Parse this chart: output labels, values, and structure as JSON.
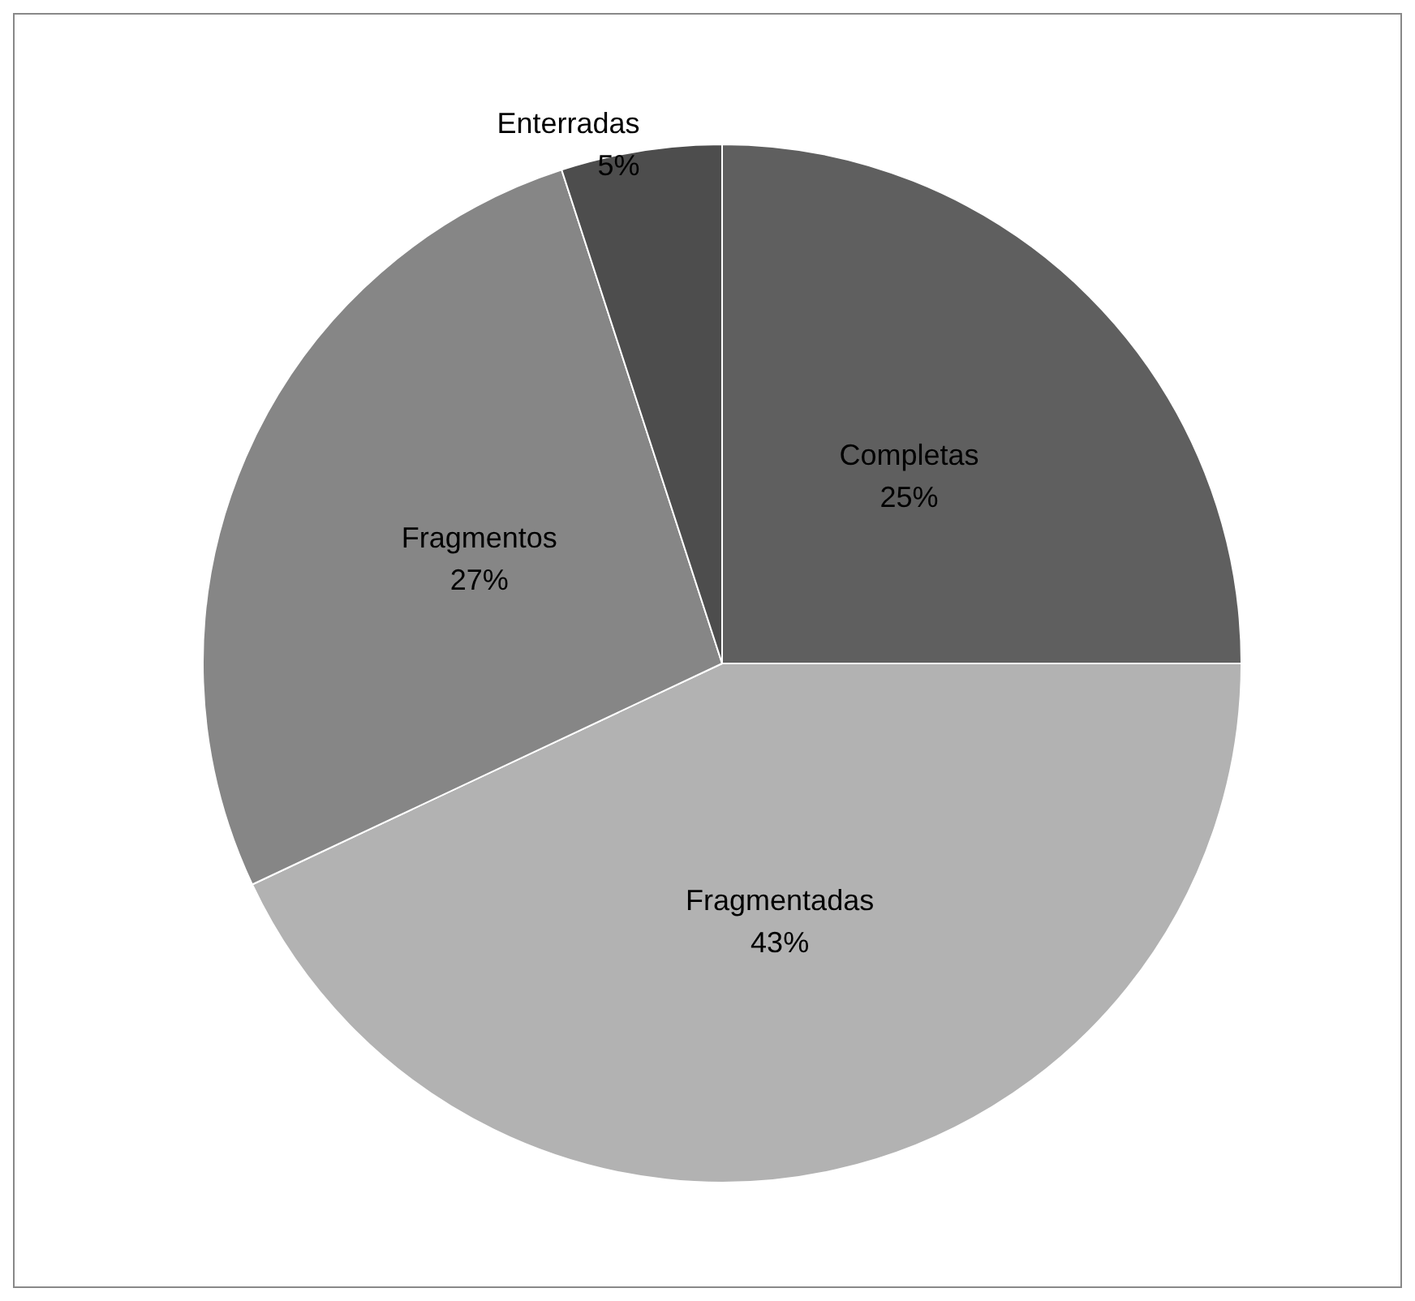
{
  "chart_data": {
    "type": "pie",
    "categories": [
      "Completas",
      "Fragmentadas",
      "Fragmentos",
      "Enterradas"
    ],
    "values": [
      25,
      43,
      27,
      5
    ],
    "colors": [
      "#5f5f5f",
      "#b2b2b2",
      "#868686",
      "#4d4d4d"
    ],
    "value_labels": [
      "25%",
      "43%",
      "27%",
      "5%"
    ],
    "legend": false
  }
}
